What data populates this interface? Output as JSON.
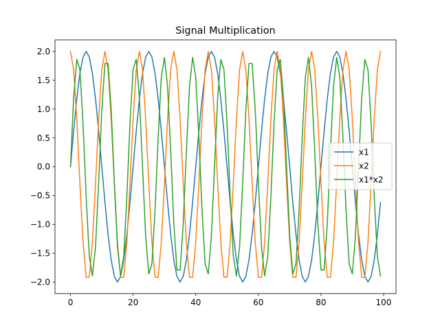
{
  "chart_data": {
    "type": "line",
    "title": "Signal Multiplication",
    "xlabel": "",
    "ylabel": "",
    "xlim": [
      -4.95,
      103.95
    ],
    "ylim": [
      -2.2,
      2.2
    ],
    "x_ticks": [
      0,
      20,
      40,
      60,
      80,
      100
    ],
    "y_ticks": [
      -2.0,
      -1.5,
      -1.0,
      -0.5,
      0.0,
      0.5,
      1.0,
      1.5,
      2.0
    ],
    "grid": false,
    "legend_position": "center-right",
    "x": {
      "start": 0,
      "end": 99,
      "step": 1
    },
    "series": [
      {
        "name": "x1",
        "color": "#1f77b4",
        "formula": "2*sin(2*pi*x/20)"
      },
      {
        "name": "x2",
        "color": "#ff7f0e",
        "formula": "2*cos(2*pi*x/11)"
      },
      {
        "name": "x1*x2",
        "color": "#2ca02c",
        "formula": "1.9*sin(2*pi*x/9.2) clipped to [-1.9, 1.9]"
      }
    ]
  }
}
